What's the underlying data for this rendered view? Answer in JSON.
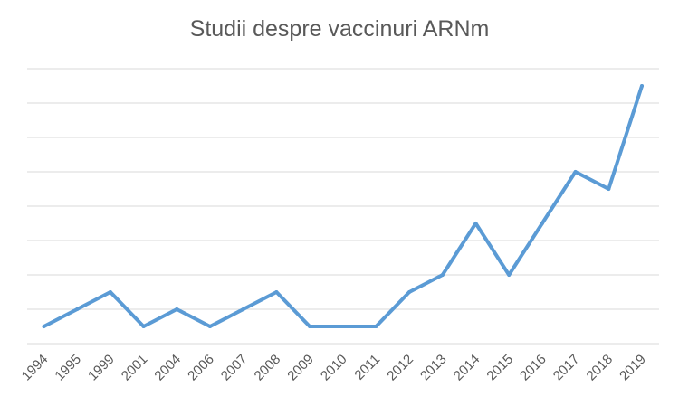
{
  "chart_data": {
    "type": "line",
    "title": "Studii despre vaccinuri ARNm",
    "xlabel": "",
    "ylabel": "",
    "categories": [
      "1994",
      "1995",
      "1999",
      "2001",
      "2004",
      "2006",
      "2007",
      "2008",
      "2009",
      "2010",
      "2011",
      "2012",
      "2013",
      "2014",
      "2015",
      "2016",
      "2017",
      "2018",
      "2019"
    ],
    "series": [
      {
        "values": [
          1,
          2,
          3,
          1,
          2,
          1,
          2,
          3,
          1,
          1,
          1,
          3,
          4,
          7,
          4,
          7,
          10,
          9,
          15
        ]
      }
    ],
    "ylim": [
      0,
      16
    ],
    "y_tick_step": 2,
    "y_tick_labels_shown": false,
    "grid": true,
    "legend": "none",
    "colors": {
      "line": "#5b9bd5",
      "grid": "#d9d9d9",
      "text": "#595959"
    }
  }
}
